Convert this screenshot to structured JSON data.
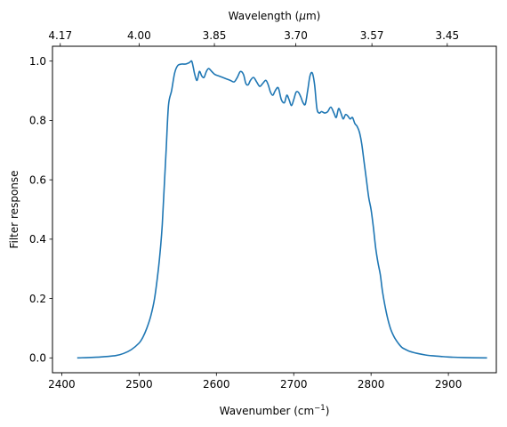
{
  "chart_data": {
    "type": "line",
    "xlabel": "Wavenumber (cm",
    "xlabel_sup": "−1",
    "xlabel_end": ")",
    "ylabel": "Filter response",
    "top_xlabel": "Wavelength (",
    "top_xlabel_mu": "μ",
    "top_xlabel_end": "m)",
    "xlim": [
      2388,
      2962
    ],
    "ylim": [
      -0.05,
      1.05
    ],
    "x_ticks": [
      2400,
      2500,
      2600,
      2700,
      2800,
      2900
    ],
    "y_ticks": [
      0.0,
      0.2,
      0.4,
      0.6,
      0.8,
      1.0
    ],
    "x_tick_labels": [
      "2400",
      "2500",
      "2600",
      "2700",
      "2800",
      "2900"
    ],
    "y_tick_labels": [
      "0.0",
      "0.2",
      "0.4",
      "0.6",
      "0.8",
      "1.0"
    ],
    "top_ticks": [
      {
        "label": "4.17",
        "wavelength_um": 4.17
      },
      {
        "label": "4.00",
        "wavelength_um": 4.0
      },
      {
        "label": "3.85",
        "wavelength_um": 3.85
      },
      {
        "label": "3.70",
        "wavelength_um": 3.7
      },
      {
        "label": "3.57",
        "wavelength_um": 3.57
      },
      {
        "label": "3.45",
        "wavelength_um": 3.45
      }
    ],
    "series": [
      {
        "color": "#1f77b4",
        "x": [
          2420,
          2450,
          2470,
          2480,
          2490,
          2500,
          2505,
          2510,
          2515,
          2520,
          2525,
          2528,
          2530,
          2532,
          2535,
          2538,
          2542,
          2546,
          2550,
          2555,
          2560,
          2565,
          2568,
          2570,
          2572,
          2575,
          2578,
          2581,
          2584,
          2587,
          2590,
          2594,
          2598,
          2603,
          2608,
          2613,
          2618,
          2623,
          2627,
          2631,
          2635,
          2638,
          2641,
          2644,
          2648,
          2652,
          2656,
          2660,
          2664,
          2667,
          2670,
          2673,
          2676,
          2680,
          2684,
          2688,
          2691,
          2694,
          2697,
          2700,
          2703,
          2706,
          2709,
          2712,
          2715,
          2718,
          2721,
          2724,
          2727,
          2730,
          2733,
          2736,
          2740,
          2744,
          2748,
          2752,
          2755,
          2758,
          2761,
          2764,
          2767,
          2770,
          2773,
          2776,
          2779,
          2782,
          2785,
          2788,
          2791,
          2794,
          2797,
          2800,
          2803,
          2806,
          2809,
          2812,
          2815,
          2820,
          2825,
          2830,
          2835,
          2840,
          2845,
          2850,
          2860,
          2870,
          2880,
          2890,
          2900,
          2920,
          2950
        ],
        "y": [
          0.0,
          0.003,
          0.008,
          0.015,
          0.028,
          0.05,
          0.07,
          0.1,
          0.14,
          0.2,
          0.3,
          0.38,
          0.45,
          0.55,
          0.7,
          0.85,
          0.9,
          0.96,
          0.985,
          0.99,
          0.99,
          0.995,
          1.0,
          0.98,
          0.955,
          0.935,
          0.965,
          0.95,
          0.945,
          0.965,
          0.975,
          0.965,
          0.955,
          0.95,
          0.945,
          0.94,
          0.935,
          0.93,
          0.945,
          0.965,
          0.955,
          0.925,
          0.92,
          0.935,
          0.945,
          0.93,
          0.915,
          0.925,
          0.935,
          0.92,
          0.895,
          0.885,
          0.9,
          0.91,
          0.87,
          0.86,
          0.885,
          0.87,
          0.85,
          0.87,
          0.895,
          0.895,
          0.88,
          0.86,
          0.855,
          0.9,
          0.95,
          0.96,
          0.92,
          0.84,
          0.825,
          0.83,
          0.825,
          0.83,
          0.845,
          0.825,
          0.81,
          0.84,
          0.825,
          0.805,
          0.82,
          0.815,
          0.805,
          0.81,
          0.79,
          0.78,
          0.76,
          0.72,
          0.66,
          0.6,
          0.54,
          0.5,
          0.44,
          0.37,
          0.32,
          0.28,
          0.22,
          0.15,
          0.1,
          0.07,
          0.05,
          0.035,
          0.028,
          0.022,
          0.015,
          0.01,
          0.007,
          0.005,
          0.003,
          0.001,
          0.0
        ]
      }
    ]
  }
}
